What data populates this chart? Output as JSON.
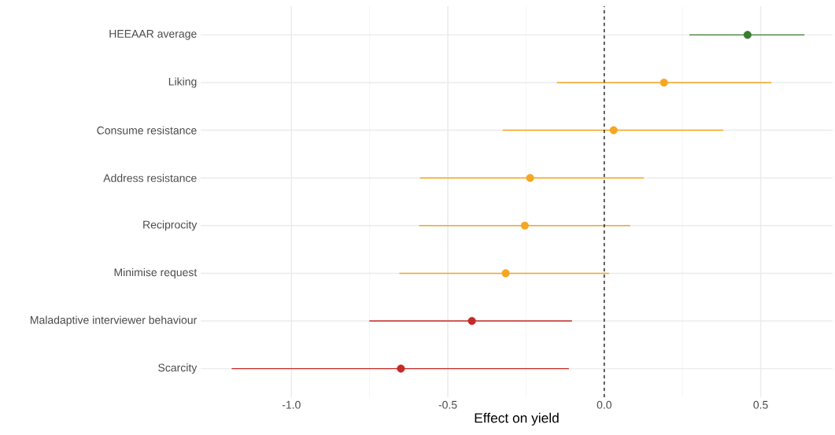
{
  "chart_data": {
    "type": "scatter",
    "orientation": "horizontal",
    "xlabel": "Effect on yield",
    "grid": true,
    "categories": [
      "HEEAAR average",
      "Liking",
      "Consume resistance",
      "Address resistance",
      "Reciprocity",
      "Minimise request",
      "Maladaptive interviewer behaviour",
      "Scarcity"
    ],
    "values": [
      0.458,
      0.191,
      0.03,
      -0.237,
      -0.254,
      -0.315,
      -0.423,
      -0.65
    ],
    "errors": [
      [
        0.272,
        0.64
      ],
      [
        -0.151,
        0.534
      ],
      [
        -0.325,
        0.38
      ],
      [
        -0.589,
        0.126
      ],
      [
        -0.592,
        0.083
      ],
      [
        -0.655,
        0.015
      ],
      [
        -0.751,
        -0.103
      ],
      [
        -1.191,
        -0.113
      ]
    ],
    "colors": [
      "#387d2e",
      "#f5a623",
      "#f5a623",
      "#f5a623",
      "#f5a623",
      "#f5a623",
      "#c62a27",
      "#c62a27"
    ],
    "xlim": [
      -1.29,
      0.73
    ],
    "xticks": [
      {
        "value": -1.0,
        "label": "-1.0"
      },
      {
        "value": -0.5,
        "label": "-0.5"
      },
      {
        "value": 0.0,
        "label": "0.0"
      },
      0.5
    ],
    "ref_lines": [
      {
        "axis": "x",
        "value": 0,
        "line_style": "dashed",
        "color": "#000000"
      }
    ]
  }
}
